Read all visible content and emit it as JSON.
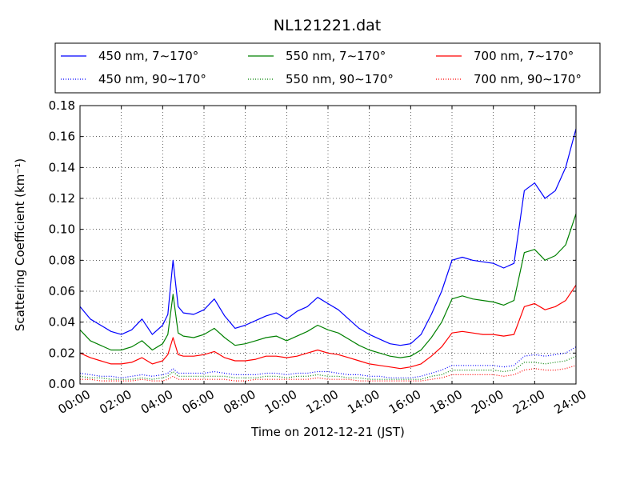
{
  "chart_data": {
    "type": "line",
    "title": "NL121221.dat",
    "xlabel": "Time on 2012-12-21 (JST)",
    "ylabel": "Scattering Coefficient (km⁻¹)",
    "xlim": [
      0,
      24
    ],
    "ylim": [
      0,
      0.18
    ],
    "grid": true,
    "legend_position": "top",
    "x_ticks": [
      0,
      2,
      4,
      6,
      8,
      10,
      12,
      14,
      16,
      18,
      20,
      22,
      24
    ],
    "x_tick_labels": [
      "00:00",
      "02:00",
      "04:00",
      "06:00",
      "08:00",
      "10:00",
      "12:00",
      "14:00",
      "16:00",
      "18:00",
      "20:00",
      "22:00",
      "24:00"
    ],
    "y_ticks": [
      0,
      0.02,
      0.04,
      0.06,
      0.08,
      0.1,
      0.12,
      0.14,
      0.16,
      0.18
    ],
    "y_tick_labels": [
      "0.00",
      "0.02",
      "0.04",
      "0.06",
      "0.08",
      "0.10",
      "0.12",
      "0.14",
      "0.16",
      "0.18"
    ],
    "x": [
      0,
      0.5,
      1,
      1.5,
      2,
      2.5,
      3,
      3.5,
      4,
      4.25,
      4.5,
      4.75,
      5,
      5.5,
      6,
      6.5,
      7,
      7.5,
      8,
      8.5,
      9,
      9.5,
      10,
      10.5,
      11,
      11.5,
      12,
      12.5,
      13,
      13.5,
      14,
      14.5,
      15,
      15.5,
      16,
      16.5,
      17,
      17.5,
      18,
      18.5,
      19,
      19.5,
      20,
      20.5,
      21,
      21.5,
      22,
      22.5,
      23,
      23.5,
      24
    ],
    "series": [
      {
        "name": "450 nm, 7∼170°",
        "color": "#0000ff",
        "style": "solid",
        "values": [
          0.05,
          0.042,
          0.038,
          0.034,
          0.032,
          0.035,
          0.042,
          0.032,
          0.038,
          0.045,
          0.08,
          0.05,
          0.046,
          0.045,
          0.048,
          0.055,
          0.044,
          0.036,
          0.038,
          0.041,
          0.044,
          0.046,
          0.042,
          0.047,
          0.05,
          0.056,
          0.052,
          0.048,
          0.042,
          0.036,
          0.032,
          0.029,
          0.026,
          0.025,
          0.026,
          0.032,
          0.045,
          0.06,
          0.08,
          0.082,
          0.08,
          0.079,
          0.078,
          0.075,
          0.078,
          0.125,
          0.13,
          0.12,
          0.125,
          0.14,
          0.165
        ]
      },
      {
        "name": "550 nm, 7∼170°",
        "color": "#008000",
        "style": "solid",
        "values": [
          0.035,
          0.028,
          0.025,
          0.022,
          0.022,
          0.024,
          0.028,
          0.022,
          0.026,
          0.032,
          0.058,
          0.033,
          0.031,
          0.03,
          0.032,
          0.036,
          0.03,
          0.025,
          0.026,
          0.028,
          0.03,
          0.031,
          0.028,
          0.031,
          0.034,
          0.038,
          0.035,
          0.033,
          0.029,
          0.025,
          0.022,
          0.02,
          0.018,
          0.017,
          0.018,
          0.022,
          0.03,
          0.04,
          0.055,
          0.057,
          0.055,
          0.054,
          0.053,
          0.051,
          0.054,
          0.085,
          0.087,
          0.08,
          0.083,
          0.09,
          0.11
        ]
      },
      {
        "name": "700 nm, 7∼170°",
        "color": "#ff0000",
        "style": "solid",
        "values": [
          0.02,
          0.017,
          0.015,
          0.013,
          0.013,
          0.014,
          0.017,
          0.013,
          0.015,
          0.019,
          0.03,
          0.019,
          0.018,
          0.018,
          0.019,
          0.021,
          0.017,
          0.015,
          0.015,
          0.016,
          0.018,
          0.018,
          0.017,
          0.018,
          0.02,
          0.022,
          0.02,
          0.019,
          0.017,
          0.015,
          0.013,
          0.012,
          0.011,
          0.01,
          0.011,
          0.013,
          0.018,
          0.024,
          0.033,
          0.034,
          0.033,
          0.032,
          0.032,
          0.031,
          0.032,
          0.05,
          0.052,
          0.048,
          0.05,
          0.054,
          0.064
        ]
      },
      {
        "name": "450 nm, 90∼170°",
        "color": "#0000ff",
        "style": "dotted",
        "values": [
          0.007,
          0.006,
          0.005,
          0.005,
          0.004,
          0.005,
          0.006,
          0.005,
          0.006,
          0.007,
          0.01,
          0.007,
          0.007,
          0.007,
          0.007,
          0.008,
          0.007,
          0.006,
          0.006,
          0.006,
          0.007,
          0.007,
          0.006,
          0.007,
          0.007,
          0.008,
          0.008,
          0.007,
          0.006,
          0.006,
          0.005,
          0.005,
          0.004,
          0.004,
          0.004,
          0.005,
          0.007,
          0.009,
          0.012,
          0.012,
          0.012,
          0.012,
          0.012,
          0.011,
          0.012,
          0.018,
          0.019,
          0.018,
          0.019,
          0.02,
          0.024
        ]
      },
      {
        "name": "550 nm, 90∼170°",
        "color": "#008000",
        "style": "dotted",
        "values": [
          0.005,
          0.004,
          0.004,
          0.003,
          0.003,
          0.003,
          0.004,
          0.003,
          0.004,
          0.005,
          0.008,
          0.005,
          0.005,
          0.005,
          0.005,
          0.005,
          0.005,
          0.004,
          0.004,
          0.004,
          0.005,
          0.005,
          0.004,
          0.005,
          0.005,
          0.006,
          0.005,
          0.005,
          0.004,
          0.004,
          0.003,
          0.003,
          0.003,
          0.003,
          0.003,
          0.003,
          0.005,
          0.006,
          0.009,
          0.009,
          0.009,
          0.009,
          0.009,
          0.008,
          0.009,
          0.014,
          0.014,
          0.013,
          0.014,
          0.015,
          0.018
        ]
      },
      {
        "name": "700 nm, 90∼170°",
        "color": "#ff0000",
        "style": "dotted",
        "values": [
          0.003,
          0.003,
          0.002,
          0.002,
          0.002,
          0.002,
          0.003,
          0.002,
          0.002,
          0.003,
          0.005,
          0.003,
          0.003,
          0.003,
          0.003,
          0.003,
          0.003,
          0.002,
          0.002,
          0.003,
          0.003,
          0.003,
          0.003,
          0.003,
          0.003,
          0.004,
          0.003,
          0.003,
          0.003,
          0.002,
          0.002,
          0.002,
          0.002,
          0.002,
          0.002,
          0.002,
          0.003,
          0.004,
          0.006,
          0.006,
          0.006,
          0.006,
          0.006,
          0.005,
          0.006,
          0.009,
          0.01,
          0.009,
          0.009,
          0.01,
          0.012
        ]
      }
    ],
    "legend_order": [
      0,
      1,
      2,
      3,
      4,
      5
    ]
  }
}
